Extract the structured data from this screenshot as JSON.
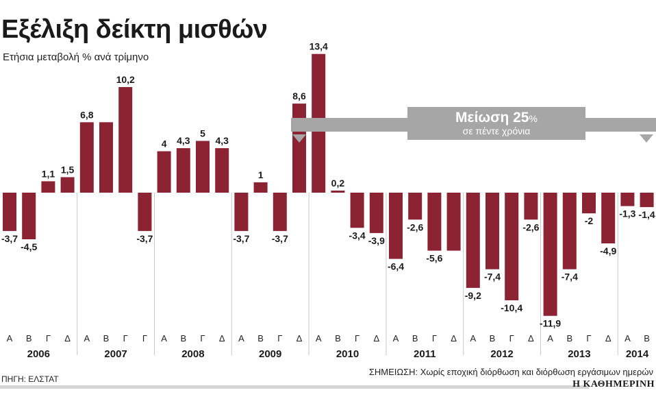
{
  "title": "Εξέλιξη δείκτη μισθών",
  "subtitle": "Ετήσια μεταβολή % ανά τρίμηνο",
  "source": "ΠΗΓΗ: ΕΛΣΤΑΤ",
  "note": "ΣΗΜΕΙΩΣΗ: Χωρίς εποχική διόρθωση και διόρθωση εργάσιμων ημερών",
  "brand": "Η ΚΑΘΗΜΕΡΙΝΗ",
  "callout": {
    "main": "Μείωση",
    "percent": "25",
    "unit": "%",
    "sub": "σε πέντε χρόνια"
  },
  "colors": {
    "bar": "#8b2332",
    "callout": "#a6a6a6",
    "divider": "#c8c8c8"
  },
  "chart_data": {
    "type": "bar",
    "title": "Εξέλιξη δείκτη μισθών",
    "subtitle": "Ετήσια μεταβολή % ανά τρίμηνο",
    "years": [
      {
        "label": "2006",
        "quarters": [
          "Α",
          "Β",
          "Γ",
          "Δ"
        ],
        "values": [
          -3.7,
          -4.5,
          1.1,
          1.5
        ],
        "labels": [
          "-3,7",
          "-4,5",
          "1,1",
          "1,5"
        ]
      },
      {
        "label": "2007",
        "quarters": [
          "Α",
          "Β",
          "Γ",
          "Γ"
        ],
        "values": [
          6.8,
          6.8,
          10.2,
          -3.7
        ],
        "labels": [
          "6,8",
          "",
          "10,2",
          "-3,7"
        ]
      },
      {
        "label": "2008",
        "quarters": [
          "Α",
          "Β",
          "Γ",
          "Δ"
        ],
        "values": [
          4,
          4.3,
          5,
          4.3
        ],
        "labels": [
          "4",
          "4,3",
          "5",
          "4,3"
        ]
      },
      {
        "label": "2009",
        "quarters": [
          "Α",
          "Β",
          "Γ",
          "Δ"
        ],
        "values": [
          -3.7,
          1,
          -3.7,
          8.6
        ],
        "labels": [
          "-3,7",
          "1",
          "-3,7",
          "8,6"
        ]
      },
      {
        "label": "2010",
        "quarters": [
          "Α",
          "Β",
          "Γ",
          "Δ"
        ],
        "values": [
          13.4,
          0.2,
          -3.4,
          -3.9
        ],
        "labels": [
          "13,4",
          "0,2",
          "-3,4",
          "-3,9"
        ]
      },
      {
        "label": "2011",
        "quarters": [
          "Α",
          "Β",
          "Γ",
          "Δ"
        ],
        "values": [
          -6.4,
          -2.6,
          -5.6,
          -5.6
        ],
        "labels": [
          "-6,4",
          "-2,6",
          "-5,6",
          ""
        ]
      },
      {
        "label": "2012",
        "quarters": [
          "Α",
          "Β",
          "Γ",
          "Δ"
        ],
        "values": [
          -9.2,
          -7.4,
          -10.4,
          -2.6
        ],
        "labels": [
          "-9,2",
          "-7,4",
          "-10,4",
          "-2,6"
        ]
      },
      {
        "label": "2013",
        "quarters": [
          "Α",
          "Β",
          "Γ",
          "Δ"
        ],
        "values": [
          -11.9,
          -7.4,
          -2,
          -4.9
        ],
        "labels": [
          "-11,9",
          "-7,4",
          "-2",
          "-4,9"
        ]
      },
      {
        "label": "2014",
        "quarters": [
          "Α",
          "Β"
        ],
        "values": [
          -1.3,
          -1.4
        ],
        "labels": [
          "-1,3",
          "-1,4"
        ]
      }
    ],
    "ylim": [
      -15,
      15
    ],
    "grid": false,
    "legend": "none"
  }
}
